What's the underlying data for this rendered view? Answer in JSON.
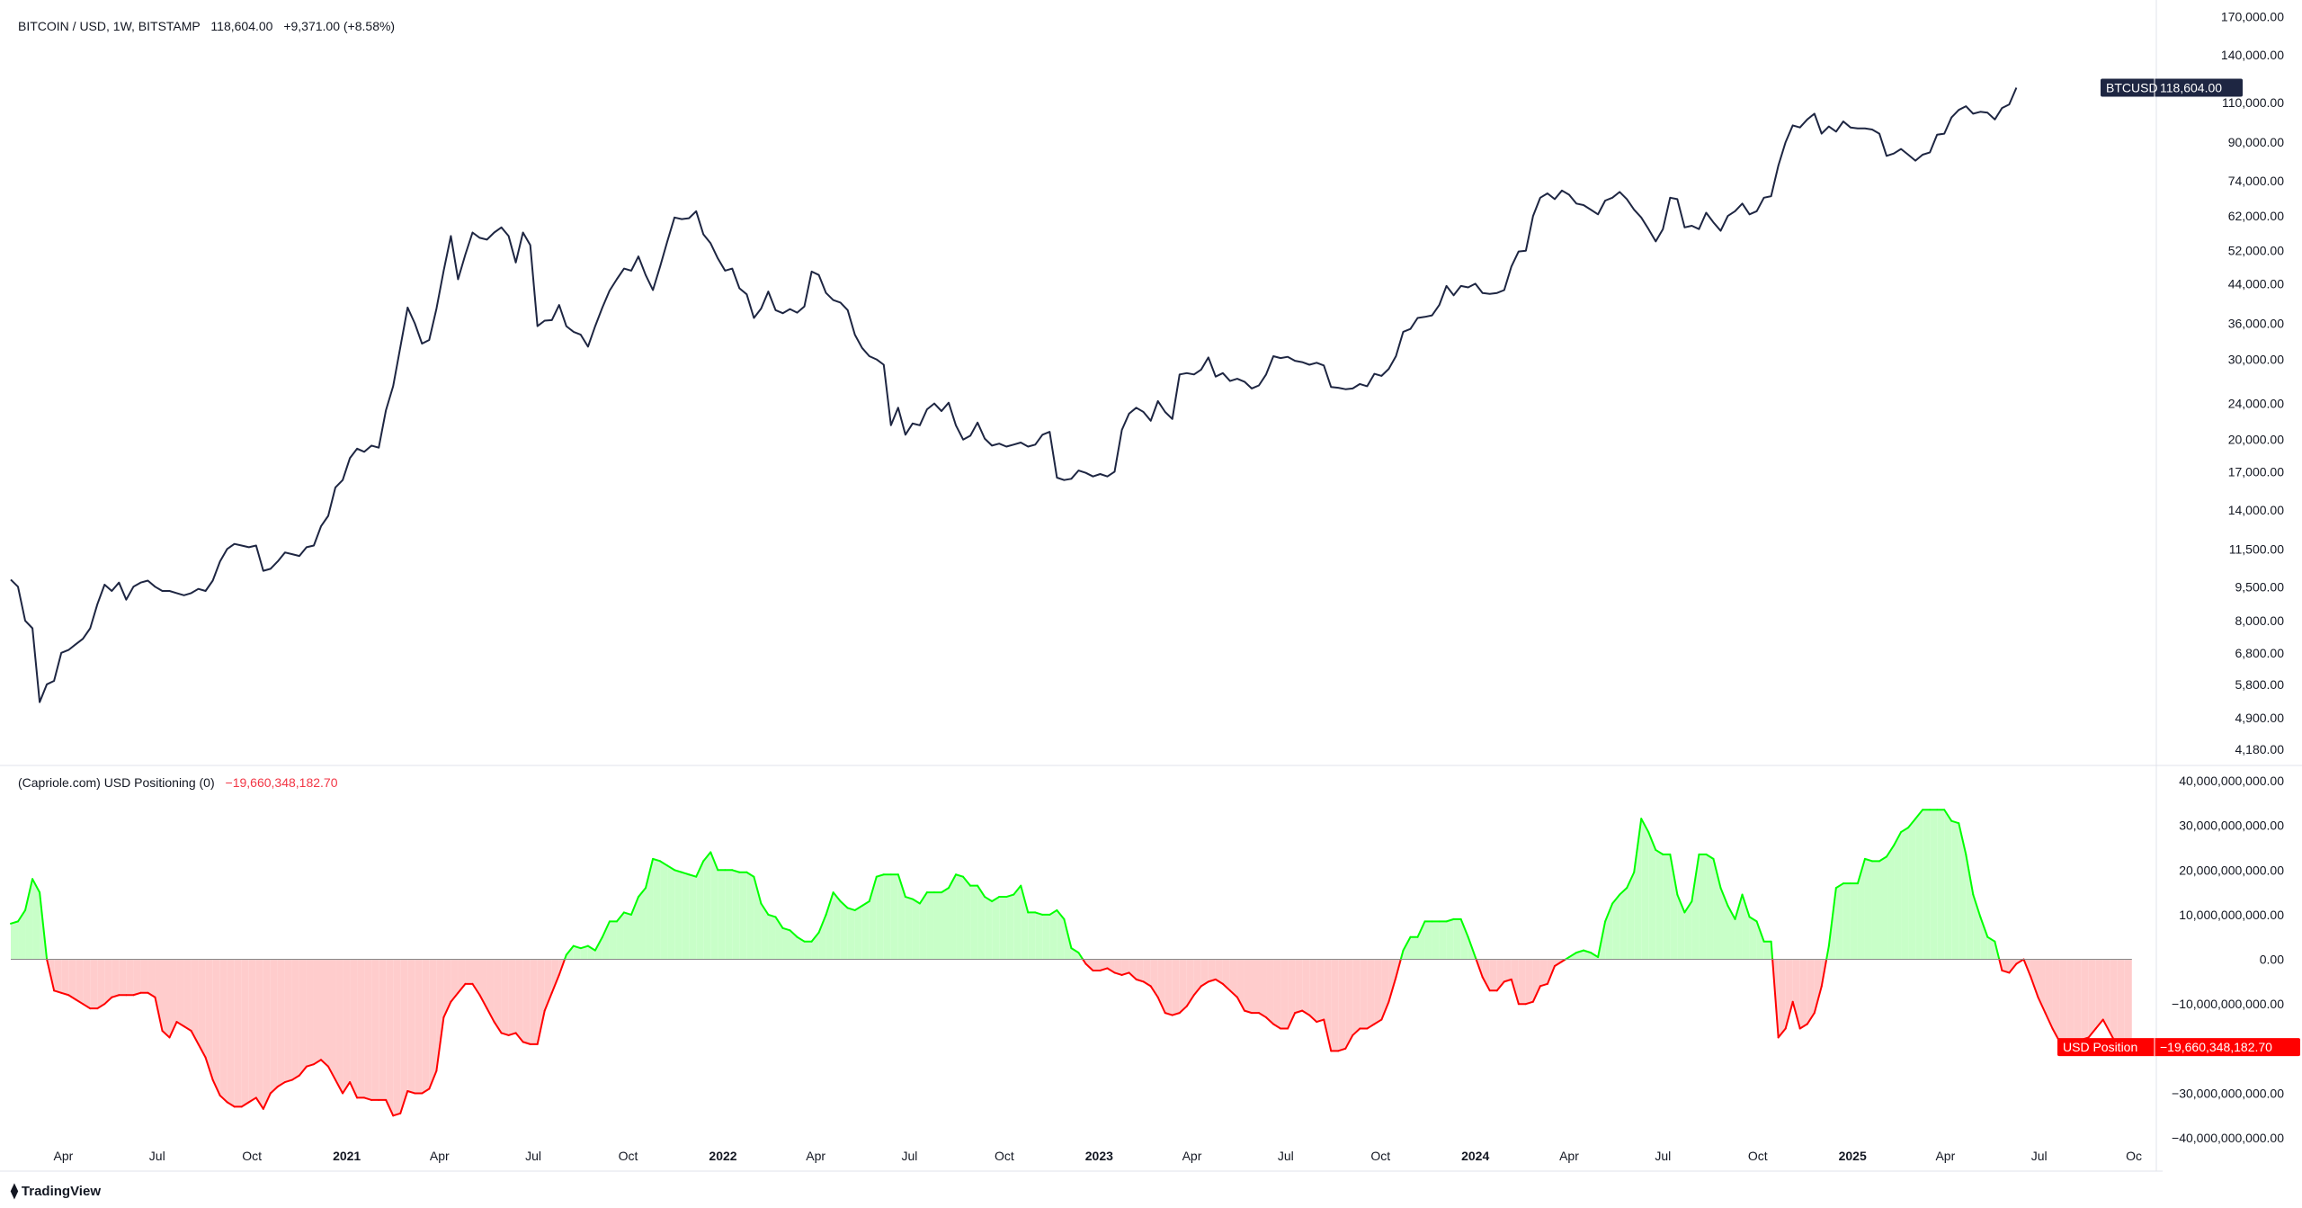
{
  "header": {
    "symbol": "BITCOIN / USD, 1W, BITSTAMP",
    "price": "118,604.00",
    "change": "+9,371.00 (+8.58%)"
  },
  "indicator": {
    "label": "(Capriole.com) USD Positioning (0)",
    "value": "−19,660,348,182.70"
  },
  "branding": {
    "logo_text": "TradingView"
  },
  "colors": {
    "price_line": "#1e2642",
    "positive": "#00ff00",
    "positive_fill": "#c8ffc8",
    "negative": "#ff0000",
    "negative_fill": "#ffcccc",
    "badge_price": "#1e2642",
    "badge_ind": "#ff0000",
    "grid": "#e0e3eb",
    "text": "#131722"
  },
  "chart_data": [
    {
      "type": "line",
      "name": "BTCUSD",
      "scale": "log",
      "x_start": "2020-02-10",
      "x_step_days": 7,
      "values": [
        9850,
        9500,
        8000,
        7700,
        5300,
        5800,
        5900,
        6800,
        6900,
        7100,
        7300,
        7700,
        8700,
        9600,
        9300,
        9700,
        8900,
        9500,
        9700,
        9800,
        9500,
        9300,
        9300,
        9200,
        9100,
        9200,
        9400,
        9300,
        9800,
        10800,
        11500,
        11800,
        11700,
        11600,
        11700,
        10300,
        10400,
        10800,
        11300,
        11200,
        11100,
        11600,
        11700,
        12900,
        13600,
        15700,
        16300,
        18200,
        19100,
        18800,
        19400,
        19200,
        23200,
        26200,
        32000,
        39000,
        36000,
        32500,
        33100,
        38800,
        47000,
        56000,
        45000,
        51000,
        57000,
        55500,
        55000,
        57000,
        58500,
        56000,
        49000,
        57000,
        53500,
        35500,
        36500,
        36600,
        39500,
        35500,
        34500,
        34000,
        32000,
        35500,
        39000,
        42500,
        45000,
        47500,
        47000,
        50500,
        46000,
        42600,
        48000,
        54500,
        61500,
        61000,
        61300,
        63500,
        56500,
        54000,
        50000,
        47000,
        47500,
        43000,
        41700,
        37000,
        38800,
        42300,
        38500,
        37900,
        38700,
        38000,
        39200,
        46800,
        46000,
        42000,
        40500,
        40000,
        38500,
        34000,
        31800,
        30500,
        30000,
        29200,
        21500,
        23500,
        20500,
        21700,
        21500,
        23300,
        24000,
        23100,
        24100,
        21500,
        20000,
        20400,
        21800,
        20100,
        19400,
        19600,
        19300,
        19500,
        19700,
        19300,
        19500,
        20500,
        20800,
        16500,
        16300,
        16400,
        17100,
        16900,
        16600,
        16800,
        16600,
        17000,
        21000,
        22800,
        23500,
        23000,
        22000,
        24300,
        23000,
        22200,
        27800,
        28000,
        27800,
        28500,
        30300,
        27500,
        28000,
        26900,
        27200,
        26800,
        25900,
        26300,
        27800,
        30500,
        30200,
        30400,
        29800,
        29600,
        29200,
        29500,
        29100,
        26100,
        26000,
        25800,
        25900,
        26500,
        26200,
        27900,
        27600,
        28600,
        30500,
        34500,
        35000,
        37000,
        37200,
        37500,
        39500,
        43500,
        41500,
        43500,
        43200,
        44000,
        42000,
        41800,
        42000,
        42600,
        48000,
        51800,
        52000,
        62000,
        68000,
        69500,
        67500,
        70500,
        69000,
        66000,
        65500,
        64000,
        62500,
        67000,
        68000,
        70000,
        67500,
        64000,
        61500,
        58000,
        54500,
        58000,
        68000,
        67500,
        58500,
        59000,
        58000,
        63000,
        60000,
        57500,
        62000,
        63500,
        66000,
        62500,
        63500,
        68000,
        68500,
        80000,
        90000,
        98000,
        97000,
        101000,
        104000,
        94000,
        97500,
        95000,
        100000,
        97000,
        96500,
        96500,
        96000,
        94000,
        84000,
        85000,
        87000,
        84500,
        82000,
        84500,
        85500,
        93500,
        94000,
        102000,
        106000,
        108000,
        104000,
        105000,
        104500,
        101000,
        107000,
        109000,
        118604
      ],
      "yticks": [
        4180,
        4900,
        5800,
        6800,
        8000,
        9500,
        11500,
        14000,
        17000,
        20000,
        24000,
        30000,
        36000,
        44000,
        52000,
        62000,
        74000,
        90000,
        110000,
        140000,
        170000
      ],
      "ytick_labels": [
        "4,180.00",
        "4,900.00",
        "5,800.00",
        "6,800.00",
        "8,000.00",
        "9,500.00",
        "11,500.00",
        "14,000.00",
        "17,000.00",
        "20,000.00",
        "24,000.00",
        "30,000.00",
        "36,000.00",
        "44,000.00",
        "52,000.00",
        "62,000.00",
        "74,000.00",
        "90,000.00",
        "110,000.00",
        "140,000.00",
        "170,000.00"
      ],
      "ylim": [
        3900,
        175000
      ],
      "last_label": "BTCUSD",
      "last_value_label": "118,604.00"
    },
    {
      "type": "area",
      "name": "USD Position",
      "baseline": 0,
      "x_start": "2020-02-10",
      "x_step_days": 7,
      "values": [
        8,
        8.5,
        11,
        18,
        15,
        0,
        -7,
        -7.5,
        -8,
        -9,
        -10,
        -11,
        -11,
        -10,
        -8.5,
        -8,
        -8,
        -8,
        -7.5,
        -7.5,
        -8.5,
        -16,
        -17.5,
        -14,
        -15,
        -16,
        -19,
        -22,
        -27,
        -30.5,
        -32,
        -33,
        -33,
        -32,
        -31,
        -33.5,
        -30,
        -28.5,
        -27.5,
        -27,
        -26,
        -24,
        -23.5,
        -22.5,
        -24,
        -27,
        -30,
        -27.5,
        -31,
        -31,
        -31.5,
        -31.5,
        -31.5,
        -35,
        -34.5,
        -29.5,
        -30,
        -30,
        -29,
        -25,
        -13,
        -9.5,
        -7.5,
        -5.5,
        -5.5,
        -8,
        -11,
        -14,
        -16.5,
        -17,
        -16.5,
        -18.5,
        -19,
        -19,
        -11.5,
        -7.5,
        -3.5,
        1,
        3,
        2.5,
        3,
        2,
        5,
        8.5,
        8.5,
        10.5,
        10,
        14,
        16,
        22.5,
        22,
        21,
        20,
        19.5,
        19,
        18.5,
        22,
        24,
        20,
        20,
        20,
        19.5,
        19.5,
        18.5,
        12.5,
        10,
        9.5,
        7,
        6.5,
        5,
        4,
        4,
        6,
        10,
        15,
        13,
        11.5,
        11,
        12,
        13,
        18.5,
        19,
        19,
        19,
        14,
        13.5,
        12.5,
        15,
        15,
        15,
        16,
        19,
        18.5,
        16.5,
        16.5,
        14,
        13,
        14,
        14,
        14.5,
        16.5,
        10.5,
        10.5,
        10,
        10,
        11,
        9,
        2.5,
        1.5,
        -1,
        -2.5,
        -2.5,
        -2,
        -3,
        -3.5,
        -3,
        -4.5,
        -5,
        -6,
        -8.5,
        -12,
        -12.5,
        -12,
        -10.5,
        -8,
        -6,
        -5,
        -4.5,
        -5.5,
        -7,
        -8.5,
        -11.5,
        -12,
        -12,
        -13,
        -14.5,
        -15.5,
        -15.5,
        -12,
        -11.5,
        -12.5,
        -14,
        -13.5,
        -20.5,
        -20.5,
        -20,
        -17,
        -15.5,
        -15.5,
        -14.5,
        -13.5,
        -9.5,
        -4,
        2,
        5,
        5,
        8.5,
        8.5,
        8.5,
        8.5,
        9,
        9,
        5,
        0.5,
        -4,
        -7,
        -7,
        -5,
        -4.5,
        -10,
        -10,
        -9.5,
        -6,
        -5.5,
        -1.5,
        -0.5,
        0.5,
        1.5,
        2,
        1.5,
        0.5,
        8.5,
        12.5,
        14.5,
        16,
        19.5,
        31.5,
        28.5,
        24.5,
        23.5,
        23.5,
        14.5,
        10.5,
        13,
        23.5,
        23.5,
        22.5,
        16,
        12,
        9,
        14.5,
        9.5,
        8.5,
        4,
        4,
        -17.5,
        -15.5,
        -9.5,
        -15.5,
        -14.5,
        -12,
        -6,
        3,
        16,
        17,
        17,
        17,
        22.5,
        22,
        22,
        23,
        25.5,
        28.5,
        29.5,
        31.5,
        33.5,
        33.5,
        33.5,
        33.5,
        31,
        30.5,
        23.5,
        14.5,
        9.5,
        5,
        4,
        -2.5,
        -3,
        -1,
        0,
        -4,
        -8.5,
        -12,
        -15.5,
        -18.5,
        -18,
        -18,
        -18,
        -17.5,
        -15.5,
        -13.5,
        -16.5,
        -19.5,
        -21,
        -19.66
      ],
      "value_unit": "billion USD",
      "yticks": [
        -40,
        -30,
        -20,
        -10,
        0,
        10,
        20,
        30,
        40
      ],
      "ytick_labels": [
        "−40,000,000,000.00",
        "−30,000,000,000.00",
        "−20,000,000,000.00",
        "−10,000,000,000.00",
        "0.00",
        "10,000,000,000.00",
        "20,000,000,000.00",
        "30,000,000,000.00",
        "40,000,000,000.00"
      ],
      "ylim": [
        -43,
        40
      ],
      "last_label": "USD Position",
      "last_value_label": "−19,660,348,182.70"
    }
  ],
  "x_axis": {
    "ticks": [
      {
        "label": "Apr",
        "date": "2020-04-01",
        "bold": false
      },
      {
        "label": "Jul",
        "date": "2020-07-01",
        "bold": false
      },
      {
        "label": "Oct",
        "date": "2020-10-01",
        "bold": false
      },
      {
        "label": "2021",
        "date": "2021-01-01",
        "bold": true
      },
      {
        "label": "Apr",
        "date": "2021-04-01",
        "bold": false
      },
      {
        "label": "Jul",
        "date": "2021-07-01",
        "bold": false
      },
      {
        "label": "Oct",
        "date": "2021-10-01",
        "bold": false
      },
      {
        "label": "2022",
        "date": "2022-01-01",
        "bold": true
      },
      {
        "label": "Apr",
        "date": "2022-04-01",
        "bold": false
      },
      {
        "label": "Jul",
        "date": "2022-07-01",
        "bold": false
      },
      {
        "label": "Oct",
        "date": "2022-10-01",
        "bold": false
      },
      {
        "label": "2023",
        "date": "2023-01-01",
        "bold": true
      },
      {
        "label": "Apr",
        "date": "2023-04-01",
        "bold": false
      },
      {
        "label": "Jul",
        "date": "2023-07-01",
        "bold": false
      },
      {
        "label": "Oct",
        "date": "2023-10-01",
        "bold": false
      },
      {
        "label": "2024",
        "date": "2024-01-01",
        "bold": true
      },
      {
        "label": "Apr",
        "date": "2024-04-01",
        "bold": false
      },
      {
        "label": "Jul",
        "date": "2024-07-01",
        "bold": false
      },
      {
        "label": "Oct",
        "date": "2024-10-01",
        "bold": false
      },
      {
        "label": "2025",
        "date": "2025-01-01",
        "bold": true
      },
      {
        "label": "Apr",
        "date": "2025-04-01",
        "bold": false
      },
      {
        "label": "Jul",
        "date": "2025-07-01",
        "bold": false
      },
      {
        "label": "Oc",
        "date": "2025-10-01",
        "bold": false
      }
    ]
  }
}
